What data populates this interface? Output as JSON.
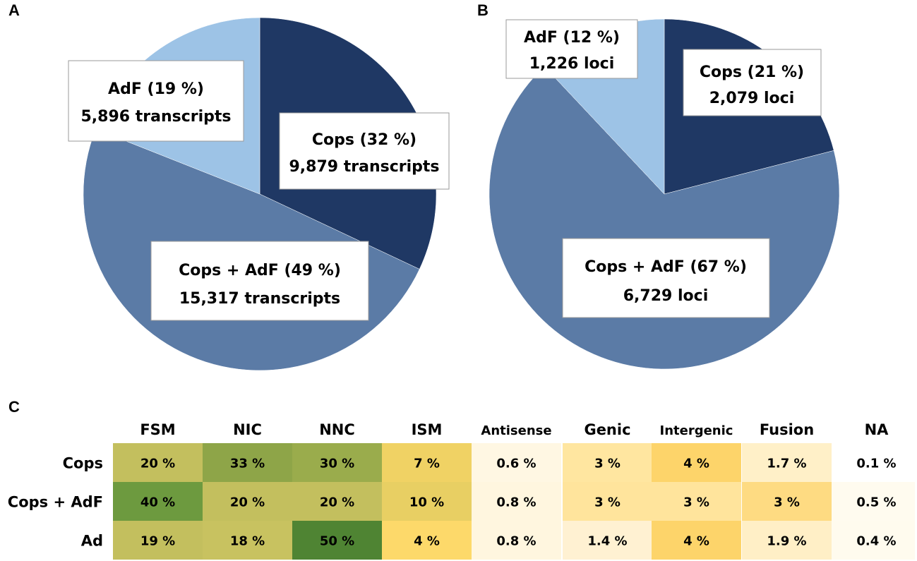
{
  "chart_data": [
    {
      "type": "pie",
      "panel": "A",
      "unit_label": "transcripts",
      "slices": [
        {
          "name": "Cops",
          "percent": 32,
          "count": "9,879",
          "label_line1": "Cops (32 %)",
          "label_line2": "9,879 transcripts",
          "color": "#1f3864"
        },
        {
          "name": "Cops + AdF",
          "percent": 49,
          "count": "15,317",
          "label_line1": "Cops + AdF (49 %)",
          "label_line2": "15,317 transcripts",
          "color": "#5b7ba6"
        },
        {
          "name": "AdF",
          "percent": 19,
          "count": "5,896",
          "label_line1": "AdF (19 %)",
          "label_line2": "5,896 transcripts",
          "color": "#9dc3e6"
        }
      ]
    },
    {
      "type": "pie",
      "panel": "B",
      "unit_label": "loci",
      "slices": [
        {
          "name": "Cops",
          "percent": 21,
          "count": "2,079",
          "label_line1": "Cops (21 %)",
          "label_line2": "2,079 loci",
          "color": "#1f3864"
        },
        {
          "name": "Cops + AdF",
          "percent": 67,
          "count": "6,729",
          "label_line1": "Cops + AdF (67 %)",
          "label_line2": "6,729 loci",
          "color": "#5b7ba6"
        },
        {
          "name": "AdF",
          "percent": 12,
          "count": "1,226",
          "label_line1": "AdF (12 %)",
          "label_line2": "1,226 loci",
          "color": "#9dc3e6"
        }
      ]
    },
    {
      "type": "heatmap",
      "panel": "C",
      "columns": [
        "FSM",
        "NIC",
        "NNC",
        "ISM",
        "Antisense",
        "Genic",
        "Intergenic",
        "Fusion",
        "NA"
      ],
      "rows": [
        {
          "name": "Cops",
          "cells": [
            {
              "text": "20 %",
              "value": 20,
              "color": "#c3bf5e"
            },
            {
              "text": "33 %",
              "value": 33,
              "color": "#8ea548"
            },
            {
              "text": "30 %",
              "value": 30,
              "color": "#9aac4c"
            },
            {
              "text": "7 %",
              "value": 7,
              "color": "#f0d264"
            },
            {
              "text": "0.6 %",
              "value": 0.6,
              "color": "#fff7e3"
            },
            {
              "text": "3 %",
              "value": 3,
              "color": "#ffe6a0"
            },
            {
              "text": "4 %",
              "value": 4,
              "color": "#fdd46a"
            },
            {
              "text": "1.7 %",
              "value": 1.7,
              "color": "#fff0c8"
            },
            {
              "text": "0.1 %",
              "value": 0.1,
              "color": "#ffffff"
            }
          ]
        },
        {
          "name": "Cops + AdF",
          "cells": [
            {
              "text": "40 %",
              "value": 40,
              "color": "#6d9a3f"
            },
            {
              "text": "20 %",
              "value": 20,
              "color": "#c3bf5e"
            },
            {
              "text": "20 %",
              "value": 20,
              "color": "#c3bf5e"
            },
            {
              "text": "10 %",
              "value": 10,
              "color": "#e8cf63"
            },
            {
              "text": "0.8 %",
              "value": 0.8,
              "color": "#fff6df"
            },
            {
              "text": "3 %",
              "value": 3,
              "color": "#ffe49c"
            },
            {
              "text": "3 %",
              "value": 3,
              "color": "#ffe49c"
            },
            {
              "text": "3 %",
              "value": 3,
              "color": "#fedb82"
            },
            {
              "text": "0.5 %",
              "value": 0.5,
              "color": "#fffbef"
            }
          ]
        },
        {
          "name": "Ad",
          "cells": [
            {
              "text": "19 %",
              "value": 19,
              "color": "#c3bf5e"
            },
            {
              "text": "18 %",
              "value": 18,
              "color": "#c8c260"
            },
            {
              "text": "50 %",
              "value": 50,
              "color": "#4f8433"
            },
            {
              "text": "4 %",
              "value": 4,
              "color": "#fdd96a"
            },
            {
              "text": "0.8 %",
              "value": 0.8,
              "color": "#fff6df"
            },
            {
              "text": "1.4 %",
              "value": 1.4,
              "color": "#fff1d2"
            },
            {
              "text": "4 %",
              "value": 4,
              "color": "#fdd46a"
            },
            {
              "text": "1.9 %",
              "value": 1.9,
              "color": "#ffefc6"
            },
            {
              "text": "0.4 %",
              "value": 0.4,
              "color": "#fffbee"
            }
          ]
        }
      ]
    }
  ]
}
